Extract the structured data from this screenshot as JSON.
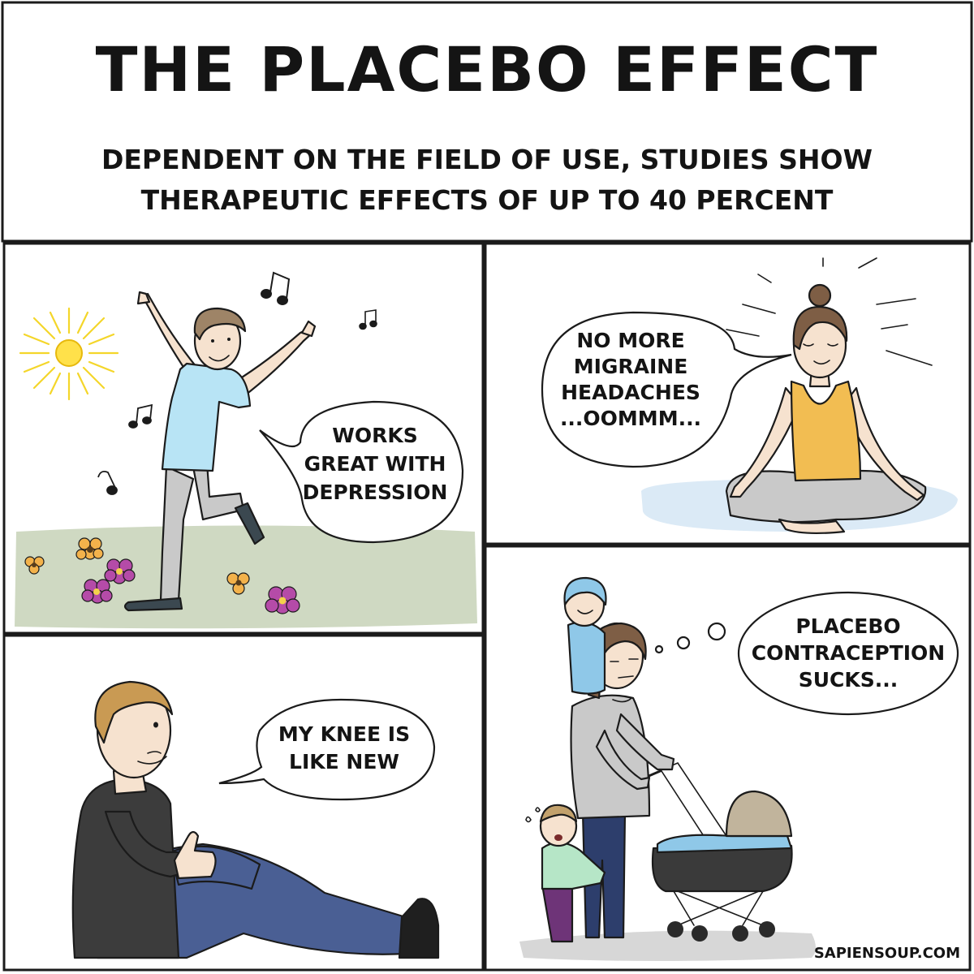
{
  "header": {
    "title": "THE PLACEBO EFFECT",
    "subtitle_line_1": "DEPENDENT ON THE FIELD OF USE, STUDIES SHOW",
    "subtitle_line_2": "THERAPEUTIC EFFECTS OF UP TO 40 PERCENT"
  },
  "panels": {
    "dancer": {
      "speech": [
        "WORKS",
        "GREAT WITH",
        "DEPRESSION"
      ]
    },
    "meditator": {
      "speech": [
        "NO MORE",
        "MIGRAINE",
        "HEADACHES",
        "...OOMMM..."
      ]
    },
    "sitter": {
      "speech": [
        "MY KNEE IS",
        "LIKE NEW"
      ]
    },
    "mother": {
      "thought": [
        "PLACEBO",
        "CONTRACEPTION",
        "SUCKS..."
      ]
    }
  },
  "credit": "SAPIENSOUP.COM",
  "colors": {
    "header_blue": "#27a8e0",
    "sky_shirt": "#b8e4f5",
    "grass": "#cfd9c2",
    "mat": "#dbeaf6",
    "tank_top": "#f2bd52",
    "jeans": "#4a5f94",
    "sweater": "#3c3c3c",
    "flower_purple": "#b54ba8",
    "flower_orange": "#f3b24b",
    "sun": "#ffe14a"
  }
}
